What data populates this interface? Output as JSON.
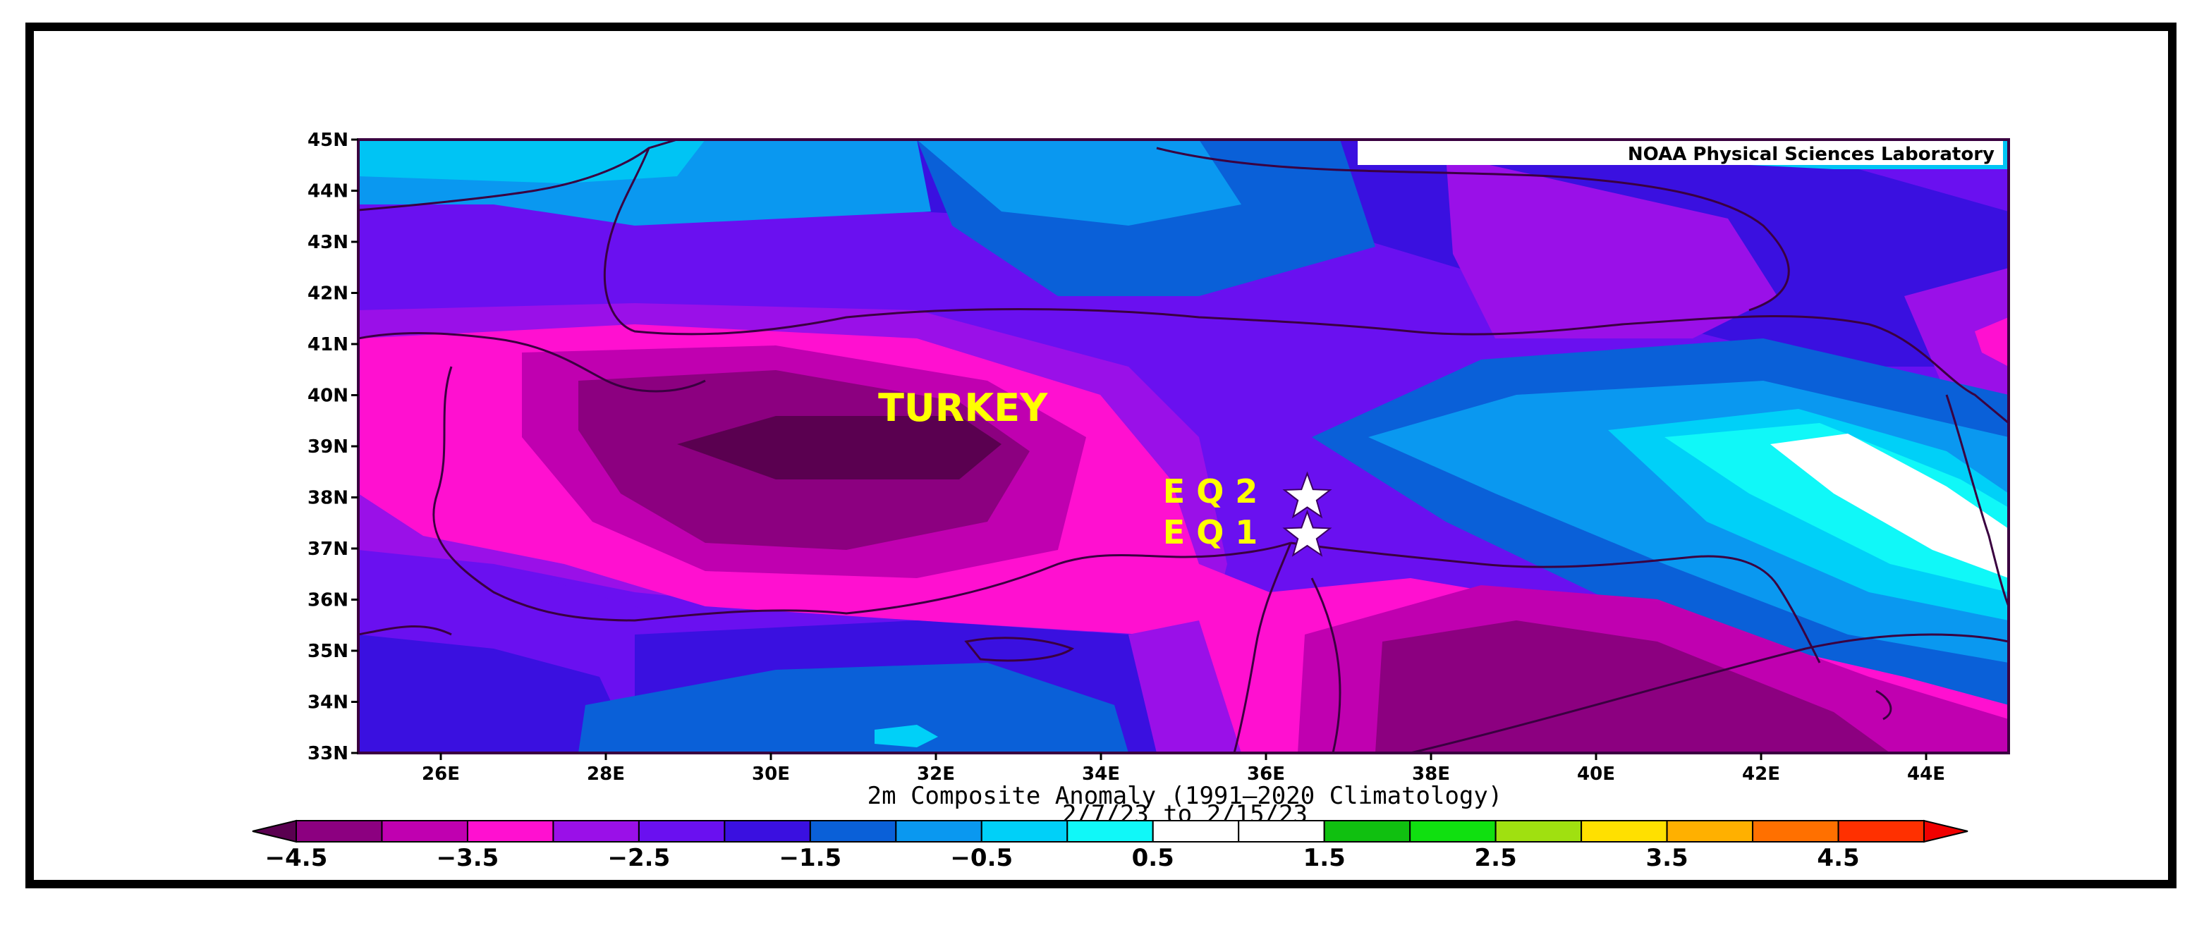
{
  "map": {
    "credit": "NOAA Physical Sciences Laboratory",
    "caption_line1": "2m    Composite Anomaly (1991–2020 Climatology)",
    "caption_line2": "2/7/23  to  2/15/23",
    "lat_ticks": [
      "45N",
      "44N",
      "43N",
      "42N",
      "41N",
      "40N",
      "39N",
      "38N",
      "37N",
      "36N",
      "35N",
      "34N",
      "33N"
    ],
    "lon_ticks": [
      "26E",
      "28E",
      "30E",
      "32E",
      "34E",
      "36E",
      "38E",
      "40E",
      "42E",
      "44E"
    ],
    "extent": {
      "lon_min": 25,
      "lon_max": 45,
      "lat_min": 33,
      "lat_max": 45
    },
    "labels": [
      {
        "text": "TURKEY",
        "lon": 31.3,
        "lat": 39.5
      },
      {
        "text": "E Q 2",
        "lon": 34.75,
        "lat": 37.9
      },
      {
        "text": "E Q 1",
        "lon": 34.75,
        "lat": 37.1
      }
    ],
    "markers": [
      {
        "name": "EQ2",
        "lon": 36.5,
        "lat": 38.0,
        "icon": "star-icon",
        "color": "#ffffff"
      },
      {
        "name": "EQ1",
        "lon": 36.5,
        "lat": 37.25,
        "icon": "star-icon",
        "color": "#ffffff"
      }
    ]
  },
  "colorbar": {
    "tick_labels": [
      "−4.5",
      "−3.5",
      "−2.5",
      "−1.5",
      "−0.5",
      "0.5",
      "1.5",
      "2.5",
      "3.5",
      "4.5"
    ],
    "colors": [
      "#5a0050",
      "#8c0080",
      "#c000b0",
      "#ff10d0",
      "#9a10e8",
      "#6a10f0",
      "#3a10e0",
      "#0a60d8",
      "#0a98f0",
      "#00d0f8",
      "#10f8f8",
      "#ffffff",
      "#ffffff",
      "#10c010",
      "#10e010",
      "#a0e010",
      "#ffe000",
      "#ffb000",
      "#ff7000",
      "#ff3000",
      "#f00000"
    ]
  }
}
